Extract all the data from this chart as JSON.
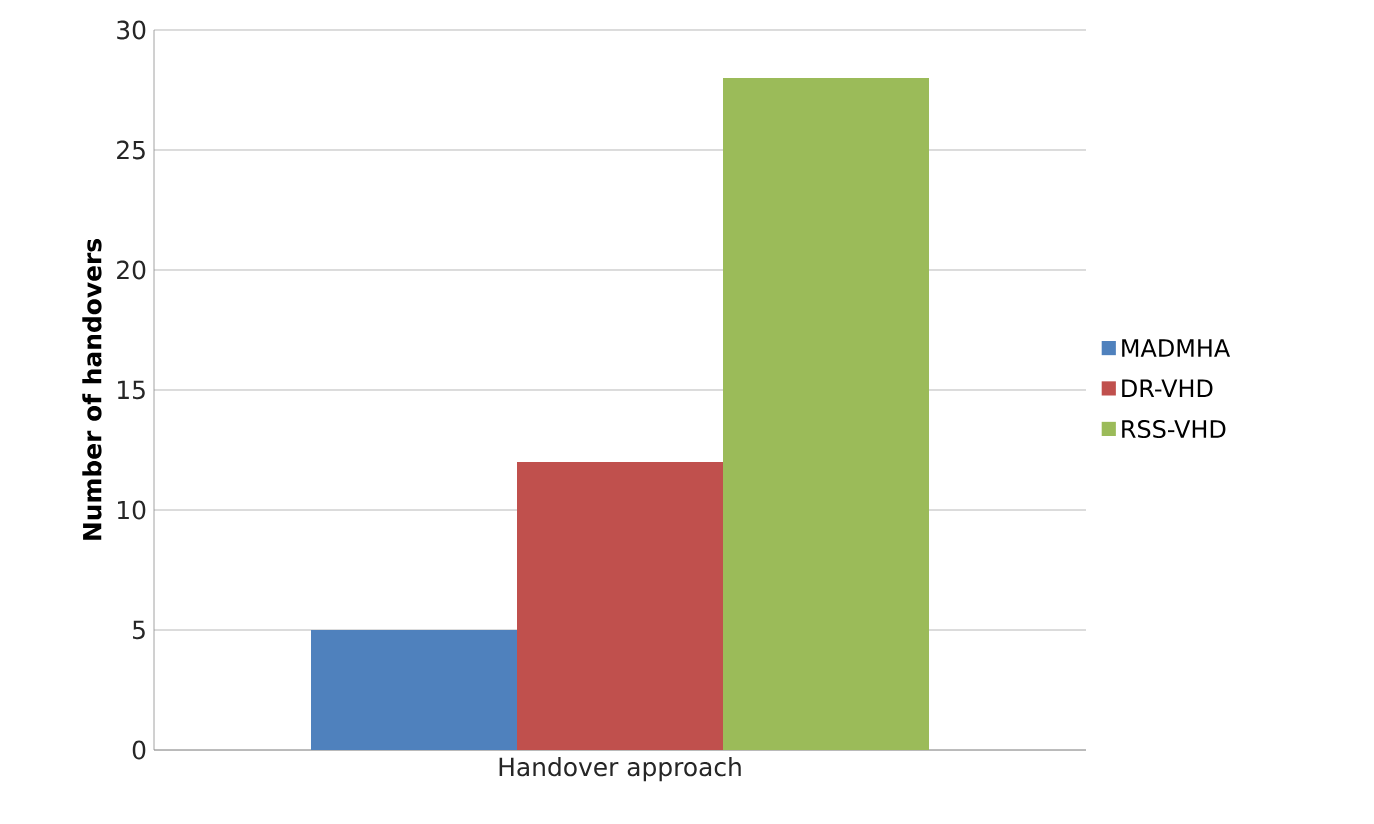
{
  "chart_data": {
    "type": "bar",
    "ylabel": "Number of handovers",
    "categories": [
      "Handover approach"
    ],
    "series": [
      {
        "name": "MADMHA",
        "color": "#4f81bd",
        "values": [
          5
        ]
      },
      {
        "name": "DR-VHD",
        "color": "#c0504d",
        "values": [
          12
        ]
      },
      {
        "name": "RSS-VHD",
        "color": "#9bbb59",
        "values": [
          28
        ]
      }
    ],
    "ylim": [
      0,
      30
    ],
    "yticks": [
      0,
      5,
      10,
      15,
      20,
      25,
      30
    ],
    "grid": "y",
    "legend": "right"
  }
}
